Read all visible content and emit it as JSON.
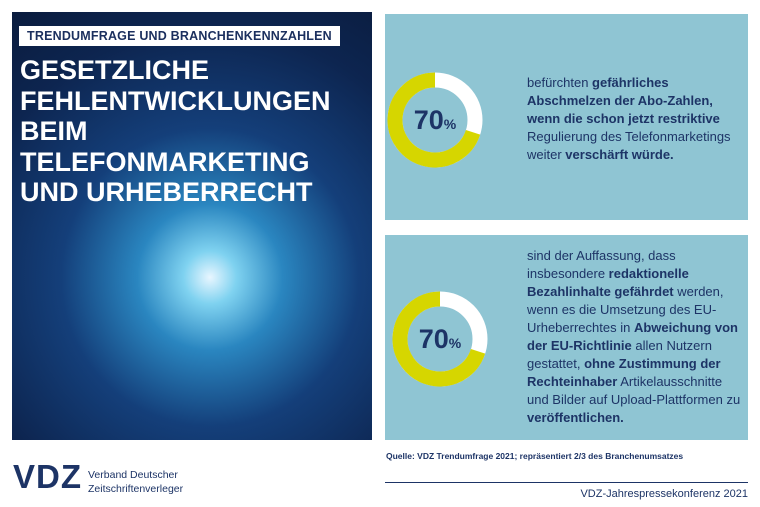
{
  "header": {
    "tag": "TRENDUMFRAGE UND BRANCHENKENNZAHLEN",
    "title": [
      "GESETZLICHE",
      "FEHLENTWICKLUNGEN",
      "BEIM TELEFONMARKETING",
      "UND URHEBERRECHT"
    ]
  },
  "panels": [
    {
      "value": 70,
      "unit": "%",
      "text": [
        {
          "text": "befürchten ",
          "bold": false
        },
        {
          "text": "gefährliches Abschmelzen der Abo-Zahlen, wenn die schon jetzt restriktive",
          "bold": true
        },
        {
          "text": " Regulierung des Telefonmarketings weiter ",
          "bold": false
        },
        {
          "text": "verschärft würde.",
          "bold": true
        }
      ]
    },
    {
      "value": 70,
      "unit": "%",
      "text": [
        {
          "text": "sind der Auffassung, dass insbesondere ",
          "bold": false
        },
        {
          "text": "redaktionelle Bezahlinhalte gefährdet",
          "bold": true
        },
        {
          "text": " werden, wenn es die Umsetzung des EU-Urheberrechtes in ",
          "bold": false
        },
        {
          "text": "Abweichung von der EU-Richtlinie",
          "bold": true
        },
        {
          "text": " allen Nutzern gestattet, ",
          "bold": false
        },
        {
          "text": "ohne Zustimmung der Rechteinhaber",
          "bold": true
        },
        {
          "text": " Artikelausschnitte und Bilder auf Upload-Plattformen zu ",
          "bold": false
        },
        {
          "text": "veröffentlichen.",
          "bold": true
        }
      ]
    }
  ],
  "source": "Quelle: VDZ Trendumfrage 2021; repräsentiert 2/3 des Branchenumsatzes",
  "footer": {
    "logo": "VDZ",
    "org": [
      "Verband Deutscher",
      "Zeitschriftenverleger"
    ],
    "event": "VDZ-Jahrespressekonferenz 2021"
  }
}
